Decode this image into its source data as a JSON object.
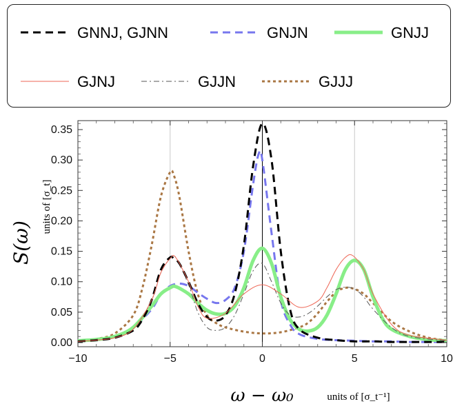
{
  "chart_data": {
    "type": "line",
    "xlabel": "ω − ω₀",
    "xunits": "units of [σ_t⁻¹]",
    "ylabel": "S(ω)",
    "yunits": "units of [σ_t]",
    "xlim": [
      -10,
      10
    ],
    "ylim": [
      0,
      0.37
    ],
    "xticks": [
      -10,
      -5,
      0,
      5,
      10
    ],
    "yticks": [
      0.0,
      0.05,
      0.1,
      0.15,
      0.2,
      0.25,
      0.3,
      0.35
    ],
    "ytick_labels": [
      "0.00",
      "0.05",
      "0.10",
      "0.15",
      "0.20",
      "0.25",
      "0.30",
      "0.35"
    ],
    "xtick_labels": [
      "−10",
      "−5",
      "0",
      "5",
      "10"
    ],
    "vertical_gridlines": [
      -5,
      0,
      5
    ],
    "legend_position": "top",
    "series": [
      {
        "name": "GNNJ, GJNN",
        "color": "#000000",
        "style": "dashed",
        "width": 3,
        "x": [
          -10,
          -9,
          -8,
          -7,
          -6.5,
          -6,
          -5.5,
          -5,
          -4.8,
          -4.5,
          -4,
          -3.5,
          -3,
          -2.5,
          -2,
          -1.5,
          -1,
          -0.5,
          0,
          0.5,
          1,
          1.5,
          2,
          3,
          4,
          5,
          6,
          7,
          8,
          10
        ],
        "y": [
          0.002,
          0.004,
          0.008,
          0.02,
          0.038,
          0.07,
          0.12,
          0.14,
          0.138,
          0.13,
          0.1,
          0.065,
          0.042,
          0.036,
          0.045,
          0.08,
          0.16,
          0.29,
          0.36,
          0.3,
          0.15,
          0.055,
          0.022,
          0.008,
          0.004,
          0.002,
          0.002,
          0.001,
          0.001,
          0.001
        ]
      },
      {
        "name": "GNJN",
        "color": "#7777ee",
        "style": "dashed",
        "width": 3,
        "x": [
          -10,
          -9,
          -8,
          -7,
          -6,
          -5.5,
          -5,
          -4.5,
          -4,
          -3.5,
          -3,
          -2.5,
          -2,
          -1.5,
          -1,
          -0.5,
          -0.2,
          0,
          0.5,
          1,
          1.5,
          2,
          3,
          4,
          5,
          6,
          7,
          8,
          10
        ],
        "y": [
          0.003,
          0.005,
          0.01,
          0.025,
          0.055,
          0.08,
          0.093,
          0.097,
          0.093,
          0.082,
          0.072,
          0.065,
          0.07,
          0.09,
          0.15,
          0.26,
          0.31,
          0.3,
          0.18,
          0.07,
          0.03,
          0.014,
          0.006,
          0.004,
          0.003,
          0.002,
          0.002,
          0.001,
          0.001
        ]
      },
      {
        "name": "GNJJ",
        "color": "#88ee88",
        "style": "solid",
        "width": 5,
        "x": [
          -10,
          -9,
          -8,
          -7,
          -6,
          -5.5,
          -5,
          -4.7,
          -4,
          -3.5,
          -3,
          -2.5,
          -2,
          -1.5,
          -1,
          -0.5,
          0,
          0.5,
          1,
          1.5,
          2,
          2.5,
          3,
          3.5,
          4,
          4.5,
          5,
          5.5,
          6,
          6.5,
          7,
          8,
          9,
          10
        ],
        "y": [
          0.003,
          0.005,
          0.01,
          0.025,
          0.06,
          0.08,
          0.09,
          0.092,
          0.08,
          0.065,
          0.053,
          0.047,
          0.048,
          0.06,
          0.09,
          0.135,
          0.155,
          0.13,
          0.075,
          0.038,
          0.022,
          0.019,
          0.025,
          0.045,
          0.08,
          0.12,
          0.135,
          0.12,
          0.075,
          0.04,
          0.022,
          0.01,
          0.005,
          0.003
        ]
      },
      {
        "name": "GJNJ",
        "color": "#ee6655",
        "style": "solid",
        "width": 1,
        "x": [
          -10,
          -9,
          -8,
          -7,
          -6,
          -5.5,
          -5,
          -4.7,
          -4,
          -3.5,
          -3,
          -2,
          -1,
          0,
          1,
          2,
          3,
          3.5,
          4,
          4.5,
          4.9,
          5.5,
          6,
          7,
          8,
          10
        ],
        "y": [
          0.002,
          0.004,
          0.008,
          0.022,
          0.07,
          0.115,
          0.138,
          0.14,
          0.1,
          0.06,
          0.04,
          0.048,
          0.08,
          0.095,
          0.08,
          0.058,
          0.068,
          0.09,
          0.12,
          0.14,
          0.143,
          0.12,
          0.08,
          0.03,
          0.012,
          0.004
        ]
      },
      {
        "name": "GJJN",
        "color": "#555555",
        "style": "dashdot",
        "width": 1,
        "x": [
          -10,
          -9,
          -8,
          -7,
          -6,
          -5.5,
          -5,
          -4.7,
          -4,
          -3.5,
          -3,
          -2.5,
          -2,
          -1.5,
          -1,
          -0.5,
          0,
          0.5,
          1,
          1.5,
          2,
          2.5,
          3,
          3.5,
          4,
          4.5,
          5,
          5.5,
          6,
          7,
          8,
          10
        ],
        "y": [
          0.002,
          0.004,
          0.008,
          0.022,
          0.07,
          0.115,
          0.138,
          0.14,
          0.095,
          0.05,
          0.025,
          0.02,
          0.025,
          0.045,
          0.08,
          0.118,
          0.13,
          0.1,
          0.065,
          0.045,
          0.042,
          0.048,
          0.06,
          0.075,
          0.087,
          0.091,
          0.088,
          0.075,
          0.055,
          0.025,
          0.01,
          0.003
        ]
      },
      {
        "name": "GJJJ",
        "color": "#aa7744",
        "style": "dotted",
        "width": 3,
        "x": [
          -10,
          -9,
          -8,
          -7,
          -6.5,
          -6,
          -5.5,
          -5,
          -4.8,
          -4.5,
          -4,
          -3.5,
          -3,
          -2.5,
          -2,
          -1,
          0,
          1,
          2,
          2.5,
          3,
          3.5,
          4,
          4.5,
          5,
          5.5,
          6,
          7,
          8,
          9,
          10
        ],
        "y": [
          0.003,
          0.006,
          0.015,
          0.045,
          0.09,
          0.16,
          0.24,
          0.28,
          0.275,
          0.24,
          0.15,
          0.08,
          0.045,
          0.032,
          0.025,
          0.018,
          0.015,
          0.017,
          0.025,
          0.033,
          0.048,
          0.067,
          0.083,
          0.09,
          0.088,
          0.08,
          0.065,
          0.035,
          0.018,
          0.008,
          0.004
        ]
      }
    ]
  }
}
